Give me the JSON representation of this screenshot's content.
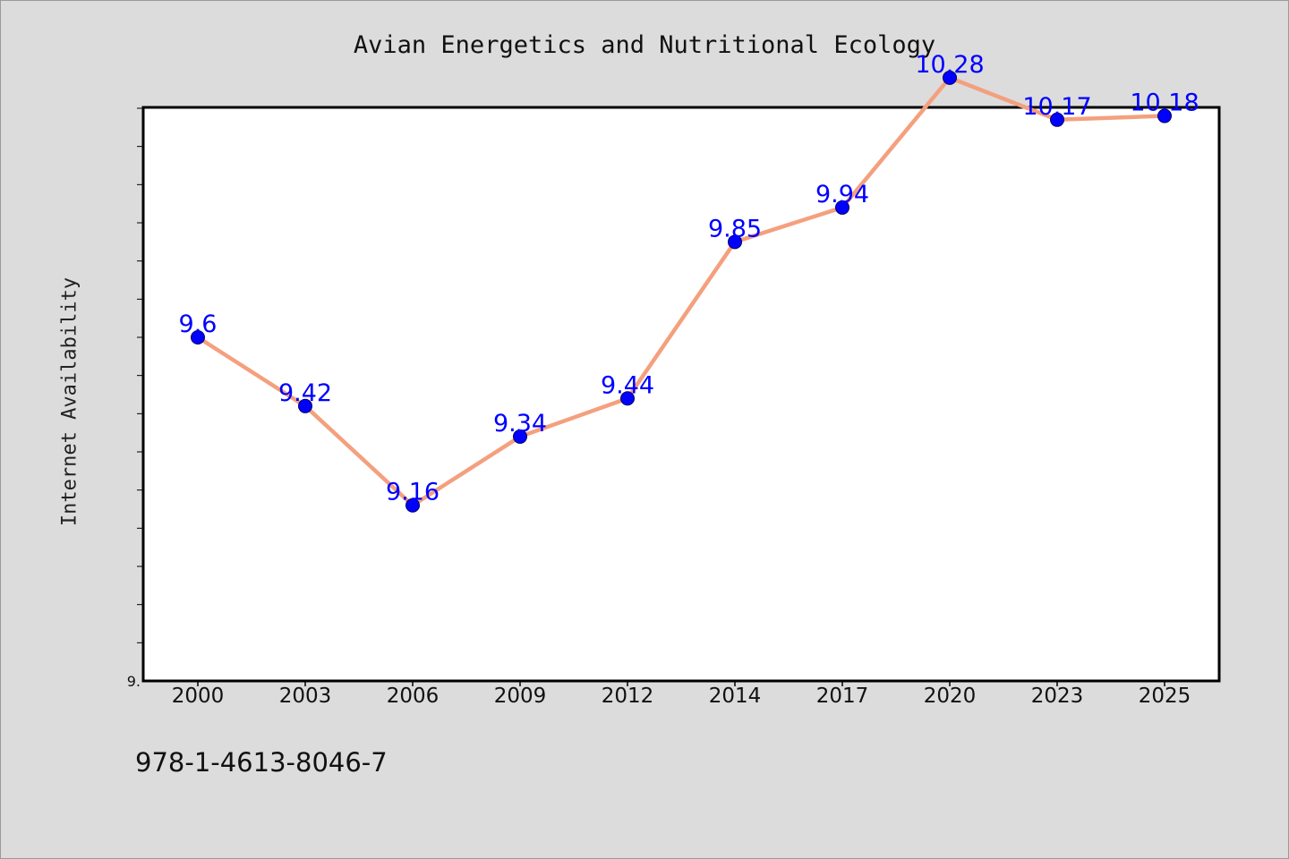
{
  "chart_data": {
    "type": "line",
    "title": "Avian Energetics and Nutritional Ecology",
    "xlabel": "",
    "ylabel": "Internet Availability",
    "categories": [
      "2000",
      "2003",
      "2006",
      "2009",
      "2012",
      "2014",
      "2017",
      "2020",
      "2023",
      "2025"
    ],
    "series": [
      {
        "values": [
          9.6,
          9.42,
          9.16,
          9.34,
          9.44,
          9.85,
          9.94,
          10.28,
          10.17,
          10.18
        ],
        "labels": [
          "9.6",
          "9.42",
          "9.16",
          "9.34",
          "9.44",
          "9.85",
          "9.94",
          "10.28",
          "10.17",
          "10.18"
        ]
      }
    ],
    "ylim": [
      8.7,
      10.2
    ],
    "ytick_labels": [
      {
        "value": 8.7,
        "label": "9."
      }
    ],
    "y_minor_tick_step": 0.1,
    "grid": false,
    "legend": "none",
    "colors": {
      "line": "#f4a07e",
      "marker_fill": "#0000ff",
      "marker_edge": "#000066",
      "data_label": "#0000ff"
    }
  },
  "footer": {
    "code": "978-1-4613-8046-7"
  }
}
